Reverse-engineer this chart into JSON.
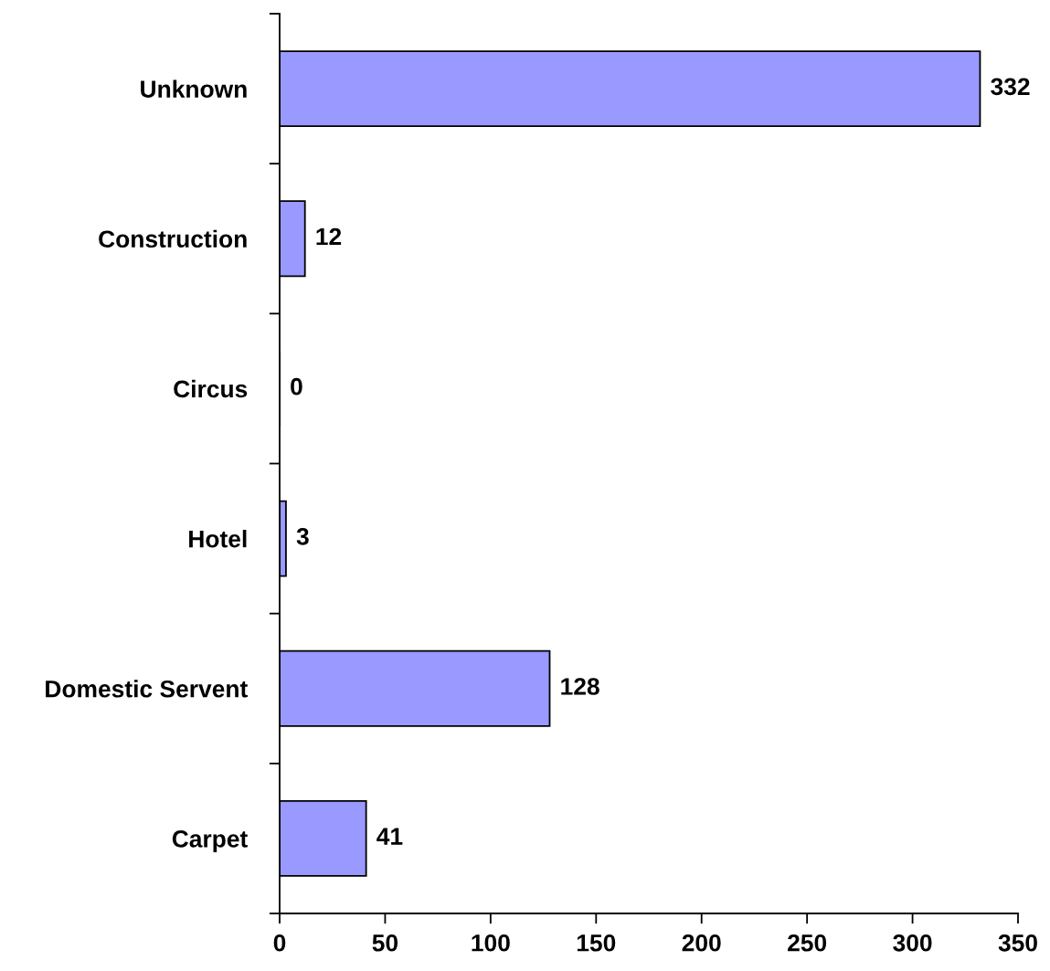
{
  "chart_data": {
    "type": "bar",
    "orientation": "horizontal",
    "categories": [
      "Unknown",
      "Construction",
      "Circus",
      "Hotel",
      "Domestic Servent",
      "Carpet"
    ],
    "values": [
      332,
      12,
      0,
      3,
      128,
      41
    ],
    "color": "#9999ff",
    "data_labels": true,
    "grid": false,
    "legend": false,
    "xlim": [
      0,
      350
    ],
    "xticks": [
      0,
      50,
      100,
      150,
      200,
      250,
      300,
      350
    ]
  }
}
